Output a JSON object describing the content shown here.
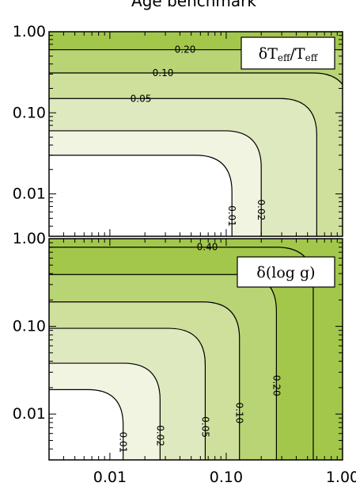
{
  "title": "Age benchmark",
  "colors": {
    "band0": "#ffffff",
    "band1": "#f0f4e0",
    "band2": "#dfe9bf",
    "band3": "#cfdf9c",
    "band4": "#b9d474",
    "band5": "#a2c74b"
  },
  "chart_data": [
    {
      "type": "contour",
      "panel_label_text": "δT",
      "panel_label_sub": "eff",
      "panel_label_sep": "/T",
      "panel_label_sub2": "eff",
      "x_scale": "log",
      "y_scale": "log",
      "xlim": [
        0.003,
        1.0
      ],
      "ylim": [
        0.003,
        1.0
      ],
      "y_ticks": [
        {
          "value": 0.01,
          "label": "0.01"
        },
        {
          "value": 0.1,
          "label": "0.10"
        },
        {
          "value": 1.0,
          "label": "1.00"
        }
      ],
      "contours": [
        {
          "level": 0.01,
          "label": "0.01",
          "corner_x": 0.112,
          "corner_y": 0.03
        },
        {
          "level": 0.02,
          "label": "0.02",
          "corner_x": 0.2,
          "corner_y": 0.06
        },
        {
          "level": 0.05,
          "label": "0.05",
          "corner_x": 0.6,
          "corner_y": 0.15
        },
        {
          "level": 0.1,
          "label": "0.10",
          "corner_x": 1.15,
          "corner_y": 0.31
        },
        {
          "level": 0.2,
          "label": "0.20",
          "corner_x": 2.2,
          "corner_y": 0.6
        }
      ]
    },
    {
      "type": "contour",
      "panel_label_text": "δ(log g)",
      "x_scale": "log",
      "y_scale": "log",
      "xlim": [
        0.003,
        1.0
      ],
      "ylim": [
        0.003,
        1.0
      ],
      "x_ticks": [
        {
          "value": 0.01,
          "label": "0.01"
        },
        {
          "value": 0.1,
          "label": "0.10"
        },
        {
          "value": 1.0,
          "label": "1.00"
        }
      ],
      "y_ticks": [
        {
          "value": 0.01,
          "label": "0.01"
        },
        {
          "value": 0.1,
          "label": "0.10"
        },
        {
          "value": 1.0,
          "label": "1.00"
        }
      ],
      "contours": [
        {
          "level": 0.01,
          "label": "0.01",
          "corner_x": 0.013,
          "corner_y": 0.019
        },
        {
          "level": 0.02,
          "label": "0.02",
          "corner_x": 0.027,
          "corner_y": 0.038
        },
        {
          "level": 0.05,
          "label": "0.05",
          "corner_x": 0.066,
          "corner_y": 0.095
        },
        {
          "level": 0.1,
          "label": "0.10",
          "corner_x": 0.13,
          "corner_y": 0.19
        },
        {
          "level": 0.2,
          "label": "0.20",
          "corner_x": 0.27,
          "corner_y": 0.39
        },
        {
          "level": 0.4,
          "label": "0.40",
          "corner_x": 0.56,
          "corner_y": 0.8
        }
      ]
    }
  ]
}
